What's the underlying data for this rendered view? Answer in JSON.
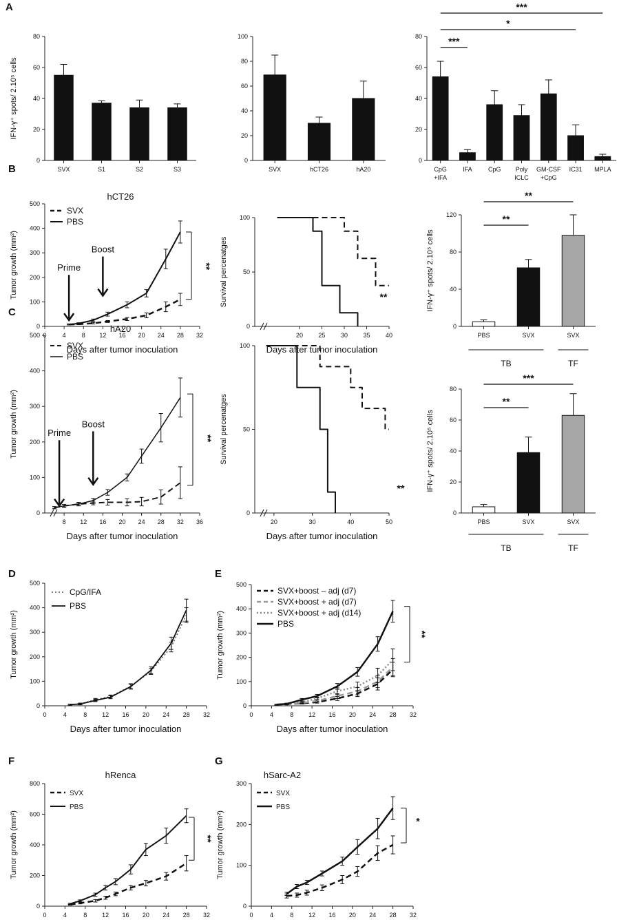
{
  "chart_data": [
    {
      "id": "A1",
      "panel_label": "A",
      "type": "bar",
      "categories": [
        "SVX",
        "S1",
        "S2",
        "S3"
      ],
      "values": [
        55,
        37,
        34,
        34
      ],
      "errors": [
        7,
        1.5,
        5,
        2.5
      ],
      "ylabel": "IFN-γ⁺ spots/ 2.10⁵ cells",
      "ylim": [
        0,
        80
      ],
      "yticks": [
        0,
        20,
        40,
        60,
        80
      ],
      "bar_colors": [
        "#111111",
        "#111111",
        "#111111",
        "#111111"
      ]
    },
    {
      "id": "A2",
      "type": "bar",
      "categories": [
        "SVX",
        "hCT26",
        "hA20"
      ],
      "values": [
        69,
        30,
        50
      ],
      "errors": [
        16,
        5,
        14
      ],
      "ylim": [
        0,
        100
      ],
      "yticks": [
        0,
        20,
        40,
        60,
        80,
        100
      ],
      "bar_colors": [
        "#111111",
        "#111111",
        "#111111"
      ]
    },
    {
      "id": "A3",
      "type": "bar",
      "categories": [
        "CpG\n+IFA",
        "IFA",
        "CpG",
        "Poly\nICLC",
        "GM-CSF\n+CpG",
        "IC31",
        "MPLA"
      ],
      "values": [
        54,
        5,
        36,
        29,
        43,
        16,
        2.5
      ],
      "errors": [
        10,
        2,
        9,
        7,
        9,
        7,
        1.5
      ],
      "ylim": [
        0,
        80
      ],
      "yticks": [
        0,
        20,
        40,
        60,
        80
      ],
      "bar_colors": [
        "#111111",
        "#111111",
        "#111111",
        "#111111",
        "#111111",
        "#111111",
        "#111111"
      ],
      "significance": [
        {
          "from": 0,
          "to": 1,
          "label": "***"
        },
        {
          "from": 0,
          "to": 5,
          "label": "*"
        },
        {
          "from": 0,
          "to": 6,
          "label": "***"
        }
      ]
    },
    {
      "id": "B1",
      "panel_label": "B",
      "type": "line",
      "title": "hCT26",
      "xlabel": "Days after tumor inoculation",
      "ylabel": "Tumor growth (mm²)",
      "xlim": [
        0,
        32
      ],
      "ylim": [
        0,
        500
      ],
      "xticks": [
        0,
        4,
        8,
        12,
        16,
        20,
        24,
        28,
        32
      ],
      "yticks": [
        0,
        100,
        200,
        300,
        400,
        500
      ],
      "legend": [
        "SVX",
        "PBS"
      ],
      "series": [
        {
          "name": "SVX",
          "style": "dashed",
          "color": "#111111",
          "width": 2.5,
          "x": [
            5,
            7,
            10,
            13,
            17,
            21,
            25,
            28
          ],
          "values": [
            8,
            9,
            13,
            20,
            30,
            45,
            80,
            110
          ],
          "errors": [
            2,
            2,
            3,
            4,
            6,
            10,
            20,
            25
          ]
        },
        {
          "name": "PBS",
          "style": "solid",
          "color": "#111111",
          "width": 2,
          "x": [
            5,
            7,
            10,
            13,
            17,
            21,
            25,
            28
          ],
          "values": [
            8,
            12,
            25,
            50,
            88,
            135,
            275,
            385
          ],
          "errors": [
            2,
            3,
            5,
            8,
            12,
            15,
            40,
            45
          ]
        }
      ],
      "arrows": [
        {
          "label": "Prime",
          "x": 5
        },
        {
          "label": "Boost",
          "x": 12
        }
      ],
      "significance": {
        "label": "**"
      }
    },
    {
      "id": "B2",
      "type": "line",
      "subtype": "survival",
      "xlabel": "Days after tumor inoculation",
      "ylabel": "Survival percenatges",
      "xlim": [
        10,
        40
      ],
      "ylim": [
        0,
        100
      ],
      "xticks": [
        20,
        25,
        30,
        35,
        40
      ],
      "yticks": [
        0,
        50,
        100
      ],
      "series": [
        {
          "name": "SVX",
          "style": "dashed",
          "color": "#111111",
          "width": 2,
          "x": [
            15,
            30,
            30,
            33,
            33,
            37,
            37,
            40
          ],
          "values": [
            100,
            100,
            87.5,
            87.5,
            62.5,
            62.5,
            37.5,
            37.5
          ]
        },
        {
          "name": "PBS",
          "style": "solid",
          "color": "#111111",
          "width": 2,
          "x": [
            15,
            23,
            23,
            25,
            25,
            29,
            29,
            33,
            33
          ],
          "values": [
            100,
            100,
            87.5,
            87.5,
            37.5,
            37.5,
            12.5,
            12.5,
            0
          ]
        }
      ],
      "significance": {
        "label": "**"
      }
    },
    {
      "id": "B3",
      "type": "bar",
      "categories": [
        "PBS",
        "SVX",
        "SVX"
      ],
      "groups": [
        "TB",
        "TF"
      ],
      "values": [
        5,
        63,
        98
      ],
      "errors": [
        2,
        9,
        22
      ],
      "ylabel": "IFN-γ⁺ spots/ 2.10⁵ cells",
      "ylim": [
        0,
        120
      ],
      "yticks": [
        0,
        40,
        80,
        120
      ],
      "bar_colors": [
        "#ffffff",
        "#111111",
        "#a6a6a6"
      ],
      "significance": [
        {
          "from": 0,
          "to": 1,
          "label": "**"
        },
        {
          "from": 0,
          "to": 2,
          "label": "**"
        }
      ]
    },
    {
      "id": "C1",
      "panel_label": "C",
      "type": "line",
      "title": "hA20",
      "xlabel": "Days after tumor inoculation",
      "ylabel": "Tumor growth (mm²)",
      "xlim": [
        4,
        36
      ],
      "ylim": [
        0,
        500
      ],
      "xticks": [
        8,
        12,
        16,
        20,
        24,
        28,
        32,
        36
      ],
      "yticks": [
        0,
        100,
        200,
        300,
        400,
        500
      ],
      "legend": [
        "SVX",
        "PBS"
      ],
      "series": [
        {
          "name": "SVX",
          "style": "dashed",
          "color": "#111111",
          "width": 2,
          "x": [
            6,
            8,
            11,
            14,
            17,
            21,
            24,
            28,
            32
          ],
          "values": [
            15,
            20,
            25,
            28,
            30,
            30,
            32,
            45,
            85
          ],
          "errors": [
            3,
            4,
            4,
            5,
            8,
            10,
            12,
            20,
            45
          ]
        },
        {
          "name": "PBS",
          "style": "solid",
          "color": "#111111",
          "width": 1.5,
          "x": [
            6,
            8,
            11,
            14,
            17,
            21,
            24,
            28,
            32
          ],
          "values": [
            15,
            20,
            25,
            35,
            58,
            100,
            160,
            240,
            325
          ],
          "errors": [
            3,
            4,
            5,
            6,
            8,
            10,
            20,
            40,
            55
          ]
        }
      ],
      "arrows": [
        {
          "label": "Prime",
          "x": 7
        },
        {
          "label": "Boost",
          "x": 14
        }
      ],
      "significance": {
        "label": "**"
      }
    },
    {
      "id": "C2",
      "type": "line",
      "subtype": "survival",
      "xlabel": "Days after tumor inoculation",
      "ylabel": "Survival percenatges",
      "xlim": [
        15,
        50
      ],
      "ylim": [
        0,
        100
      ],
      "xticks": [
        20,
        30,
        40,
        50
      ],
      "yticks": [
        0,
        50,
        100
      ],
      "series": [
        {
          "name": "SVX",
          "style": "dashed",
          "color": "#111111",
          "width": 2,
          "x": [
            18,
            32,
            32,
            40,
            40,
            43,
            43,
            49,
            49,
            50
          ],
          "values": [
            100,
            100,
            87.5,
            87.5,
            75,
            75,
            62.5,
            62.5,
            50,
            50
          ]
        },
        {
          "name": "PBS",
          "style": "solid",
          "color": "#111111",
          "width": 2,
          "x": [
            18,
            26,
            26,
            32,
            32,
            34,
            34,
            36,
            36
          ],
          "values": [
            100,
            100,
            75,
            75,
            50,
            50,
            12.5,
            12.5,
            0
          ]
        }
      ],
      "significance": {
        "label": "**"
      }
    },
    {
      "id": "C3",
      "type": "bar",
      "categories": [
        "PBS",
        "SVX",
        "SVX"
      ],
      "groups": [
        "TB",
        "TF"
      ],
      "values": [
        4,
        39,
        63
      ],
      "errors": [
        1.5,
        10,
        14
      ],
      "ylabel": "IFN-γ⁺ spots/ 2.10⁵ cells",
      "ylim": [
        0,
        80
      ],
      "yticks": [
        0,
        20,
        40,
        60,
        80
      ],
      "bar_colors": [
        "#ffffff",
        "#111111",
        "#a6a6a6"
      ],
      "significance": [
        {
          "from": 0,
          "to": 1,
          "label": "**"
        },
        {
          "from": 0,
          "to": 2,
          "label": "***"
        }
      ]
    },
    {
      "id": "D",
      "panel_label": "D",
      "type": "line",
      "xlabel": "Days after tumor inoculation",
      "ylabel": "Tumor growth (mm²)",
      "xlim": [
        0,
        32
      ],
      "ylim": [
        0,
        500
      ],
      "xticks": [
        0,
        4,
        8,
        12,
        16,
        20,
        24,
        28,
        32
      ],
      "yticks": [
        0,
        100,
        200,
        300,
        400,
        500
      ],
      "legend": [
        "CpG/IFA",
        "PBS"
      ],
      "series": [
        {
          "name": "CpG/IFA",
          "style": "dotted",
          "color": "#555555",
          "width": 1.5,
          "x": [
            5,
            7,
            10,
            13,
            17,
            21,
            25,
            28
          ],
          "values": [
            5,
            8,
            25,
            38,
            80,
            140,
            240,
            370
          ],
          "errors": [
            2,
            3,
            5,
            6,
            10,
            12,
            20,
            30
          ]
        },
        {
          "name": "PBS",
          "style": "solid",
          "color": "#111111",
          "width": 1.8,
          "x": [
            5,
            7,
            10,
            13,
            17,
            21,
            25,
            28
          ],
          "values": [
            5,
            7,
            22,
            35,
            78,
            145,
            255,
            390
          ],
          "errors": [
            2,
            3,
            5,
            6,
            10,
            14,
            25,
            45
          ]
        }
      ]
    },
    {
      "id": "E",
      "panel_label": "E",
      "type": "line",
      "xlabel": "Days after tumor inoculation",
      "ylabel": "Tumor growth (mm²)",
      "xlim": [
        0,
        32
      ],
      "ylim": [
        0,
        500
      ],
      "xticks": [
        0,
        4,
        8,
        12,
        16,
        20,
        24,
        28,
        32
      ],
      "yticks": [
        0,
        100,
        200,
        300,
        400,
        500
      ],
      "legend": [
        "SVX+boost – adj (d7)",
        "SVX+boost + adj (d7)",
        "SVX+boost + adj (d14)",
        "PBS"
      ],
      "series": [
        {
          "name": "SVX+boost – adj (d7)",
          "style": "dashed",
          "color": "#111111",
          "width": 2.5,
          "x": [
            5,
            7,
            10,
            13,
            17,
            21,
            25,
            28
          ],
          "values": [
            5,
            6,
            10,
            15,
            30,
            50,
            90,
            150
          ],
          "errors": [
            2,
            2,
            3,
            4,
            8,
            12,
            25,
            30
          ]
        },
        {
          "name": "SVX+boost + adj (d7)",
          "style": "dashed",
          "color": "#9a9a9a",
          "width": 2.5,
          "x": [
            5,
            7,
            10,
            13,
            17,
            21,
            25,
            28
          ],
          "values": [
            5,
            6,
            12,
            20,
            40,
            60,
            100,
            160
          ],
          "errors": [
            2,
            2,
            3,
            5,
            10,
            15,
            25,
            35
          ]
        },
        {
          "name": "SVX+boost + adj (d14)",
          "style": "dotted",
          "color": "#8a8a8a",
          "width": 2.5,
          "x": [
            5,
            7,
            10,
            13,
            17,
            21,
            25,
            28
          ],
          "values": [
            5,
            7,
            15,
            30,
            60,
            80,
            125,
            190
          ],
          "errors": [
            2,
            2,
            4,
            6,
            14,
            18,
            30,
            45
          ]
        },
        {
          "name": "PBS",
          "style": "solid",
          "color": "#111111",
          "width": 2.5,
          "x": [
            5,
            7,
            10,
            13,
            17,
            21,
            25,
            28
          ],
          "values": [
            5,
            8,
            25,
            40,
            80,
            140,
            255,
            390
          ],
          "errors": [
            2,
            3,
            5,
            7,
            12,
            18,
            30,
            45
          ]
        }
      ],
      "significance": {
        "label": "**"
      }
    },
    {
      "id": "F",
      "panel_label": "F",
      "type": "line",
      "title": "hRenca",
      "xlabel": "Days after tumor inoculation",
      "ylabel": "Tumor growth (mm²)",
      "xlim": [
        0,
        32
      ],
      "ylim": [
        0,
        800
      ],
      "xticks": [
        0,
        4,
        8,
        12,
        16,
        20,
        24,
        28,
        32
      ],
      "yticks": [
        0,
        200,
        400,
        600,
        800
      ],
      "legend": [
        "SVX",
        "PBS"
      ],
      "series": [
        {
          "name": "SVX",
          "style": "dashed",
          "color": "#111111",
          "width": 2.5,
          "x": [
            5,
            7,
            10,
            12,
            14,
            17,
            20,
            24,
            28
          ],
          "values": [
            10,
            20,
            35,
            55,
            80,
            120,
            150,
            195,
            280
          ],
          "errors": [
            3,
            5,
            8,
            10,
            12,
            15,
            18,
            25,
            50
          ]
        },
        {
          "name": "PBS",
          "style": "solid",
          "color": "#111111",
          "width": 2,
          "x": [
            5,
            7,
            10,
            12,
            14,
            17,
            20,
            24,
            28
          ],
          "values": [
            15,
            35,
            75,
            120,
            160,
            240,
            370,
            460,
            590
          ],
          "errors": [
            4,
            6,
            10,
            15,
            20,
            30,
            40,
            50,
            45
          ]
        }
      ],
      "significance": {
        "label": "**"
      }
    },
    {
      "id": "G",
      "panel_label": "G",
      "type": "line",
      "title": "hSarc-A2",
      "xlabel": "Days after tumor inoculation",
      "ylabel": "Tumor growth (mm²)",
      "xlim": [
        0,
        32
      ],
      "ylim": [
        0,
        300
      ],
      "xticks": [
        0,
        4,
        8,
        12,
        16,
        20,
        24,
        28,
        32
      ],
      "yticks": [
        0,
        100,
        200,
        300
      ],
      "legend": [
        "SVX",
        "PBS"
      ],
      "series": [
        {
          "name": "SVX",
          "style": "dashed",
          "color": "#111111",
          "width": 2.5,
          "x": [
            7,
            9,
            11,
            14,
            18,
            21,
            25,
            28
          ],
          "values": [
            25,
            27,
            33,
            45,
            65,
            85,
            130,
            150
          ],
          "errors": [
            5,
            5,
            6,
            7,
            10,
            12,
            18,
            22
          ]
        },
        {
          "name": "PBS",
          "style": "solid",
          "color": "#111111",
          "width": 2.5,
          "x": [
            7,
            9,
            11,
            14,
            18,
            21,
            25,
            28
          ],
          "values": [
            30,
            48,
            58,
            80,
            110,
            145,
            190,
            240
          ],
          "errors": [
            4,
            5,
            5,
            6,
            10,
            18,
            25,
            28
          ]
        }
      ],
      "significance": {
        "label": "*"
      }
    }
  ]
}
